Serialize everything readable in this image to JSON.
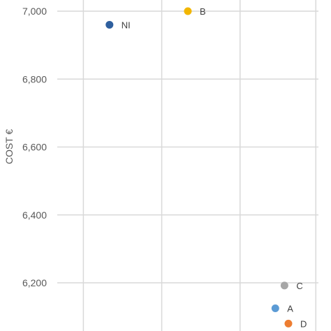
{
  "chart_data": {
    "type": "scatter",
    "title": "",
    "xlabel": "",
    "ylabel": "COST €",
    "ylim": [
      6150,
      7020
    ],
    "yticks": [
      6200,
      6400,
      6600,
      6800,
      7000
    ],
    "ytick_labels": [
      "6,200",
      "6,400",
      "6,600",
      "6,800",
      "7,000"
    ],
    "xlim": [
      0,
      10
    ],
    "xgrid": [
      1,
      4,
      7,
      9.9
    ],
    "grid": true,
    "legend": "none",
    "points": [
      {
        "label": "NI",
        "x": 2,
        "y": 6960,
        "color": "#2e5f9e"
      },
      {
        "label": "B",
        "x": 5,
        "y": 7000,
        "color": "#f2b600"
      },
      {
        "label": "C",
        "x": 8.7,
        "y": 6192,
        "color": "#a6a6a6"
      },
      {
        "label": "A",
        "x": 8.35,
        "y": 6125,
        "color": "#5b9bd5"
      },
      {
        "label": "D",
        "x": 8.85,
        "y": 6080,
        "color": "#ed7d31"
      }
    ]
  }
}
